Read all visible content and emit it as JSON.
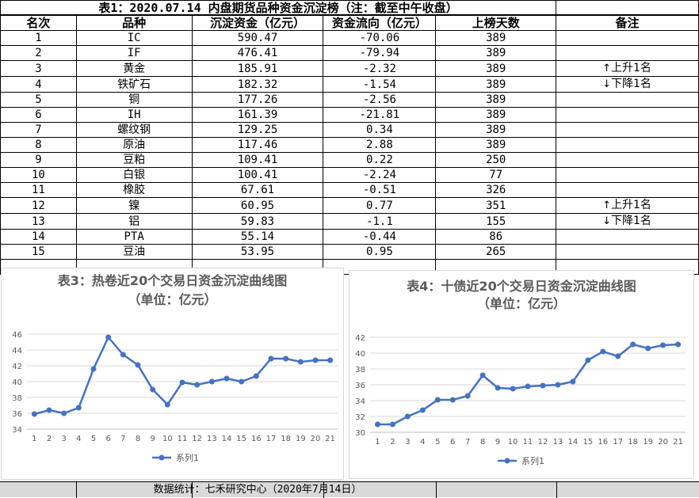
{
  "table": {
    "title": "表1：2020.07.14 内盘期货品种资金沉淀榜（注：截至中午收盘）",
    "headers": [
      "名次",
      "品种",
      "沉淀资金（亿元）",
      "资金流向（亿元）",
      "上榜天数",
      "备注"
    ],
    "rows": [
      {
        "rank": "1",
        "name": "IC",
        "fund": "590.47",
        "flow": "-70.06",
        "days": "389",
        "note": ""
      },
      {
        "rank": "2",
        "name": "IF",
        "fund": "476.41",
        "flow": "-79.94",
        "days": "389",
        "note": ""
      },
      {
        "rank": "3",
        "name": "黄金",
        "fund": "185.91",
        "flow": "-2.32",
        "days": "389",
        "note": "上升1名",
        "dir": "up"
      },
      {
        "rank": "4",
        "name": "铁矿石",
        "fund": "182.32",
        "flow": "-1.54",
        "days": "389",
        "note": "下降1名",
        "dir": "down"
      },
      {
        "rank": "5",
        "name": "铜",
        "fund": "177.26",
        "flow": "-2.56",
        "days": "389",
        "note": ""
      },
      {
        "rank": "6",
        "name": "IH",
        "fund": "161.39",
        "flow": "-21.81",
        "days": "389",
        "note": ""
      },
      {
        "rank": "7",
        "name": "螺纹钢",
        "fund": "129.25",
        "flow": "0.34",
        "days": "389",
        "note": ""
      },
      {
        "rank": "8",
        "name": "原油",
        "fund": "117.46",
        "flow": "2.88",
        "days": "389",
        "note": ""
      },
      {
        "rank": "9",
        "name": "豆粕",
        "fund": "109.41",
        "flow": "0.22",
        "days": "250",
        "note": ""
      },
      {
        "rank": "10",
        "name": "白银",
        "fund": "100.41",
        "flow": "-2.24",
        "days": "77",
        "note": ""
      },
      {
        "rank": "11",
        "name": "橡胶",
        "fund": "67.61",
        "flow": "-0.51",
        "days": "326",
        "note": ""
      },
      {
        "rank": "12",
        "name": "镍",
        "fund": "60.95",
        "flow": "0.77",
        "days": "351",
        "note": "上升1名",
        "dir": "up"
      },
      {
        "rank": "13",
        "name": "铝",
        "fund": "59.83",
        "flow": "-1.1",
        "days": "155",
        "note": "下降1名",
        "dir": "down"
      },
      {
        "rank": "14",
        "name": "PTA",
        "fund": "55.14",
        "flow": "-0.44",
        "days": "86",
        "note": ""
      },
      {
        "rank": "15",
        "name": "豆油",
        "fund": "53.95",
        "flow": "0.95",
        "days": "265",
        "note": ""
      },
      {
        "rank": "",
        "name": "",
        "fund": "",
        "flow": "",
        "days": "",
        "note": ""
      }
    ]
  },
  "chart_data": [
    {
      "type": "line",
      "title": "表3：热卷近20个交易日资金沉淀曲线图",
      "subtitle": "（单位：亿元）",
      "x": [
        1,
        2,
        3,
        4,
        5,
        6,
        7,
        8,
        9,
        10,
        11,
        12,
        13,
        14,
        15,
        16,
        17,
        18,
        19,
        20,
        21
      ],
      "series": [
        {
          "name": "系列1",
          "values": [
            35.9,
            36.4,
            36.0,
            36.7,
            41.6,
            45.6,
            43.4,
            42.1,
            39.0,
            37.1,
            39.9,
            39.6,
            40.0,
            40.4,
            40.0,
            40.7,
            42.9,
            42.9,
            42.5,
            42.7,
            42.7
          ]
        }
      ],
      "ylim": [
        34,
        46
      ],
      "yticks": [
        34,
        36,
        38,
        40,
        42,
        44,
        46
      ],
      "grid": true,
      "legend": "bottom",
      "color": "#4472c4"
    },
    {
      "type": "line",
      "title": "表4：十债近20个交易日资金沉淀曲线图",
      "subtitle": "（单位：亿元）",
      "x": [
        1,
        2,
        3,
        4,
        5,
        6,
        7,
        8,
        9,
        10,
        11,
        12,
        13,
        14,
        15,
        16,
        17,
        18,
        19,
        20,
        21
      ],
      "series": [
        {
          "name": "系列1",
          "values": [
            31.0,
            31.0,
            32.0,
            32.8,
            34.1,
            34.1,
            34.6,
            37.2,
            35.6,
            35.5,
            35.8,
            35.9,
            36.0,
            36.4,
            39.1,
            40.2,
            39.6,
            41.1,
            40.6,
            41.0,
            41.1
          ]
        }
      ],
      "ylim": [
        30,
        42
      ],
      "yticks": [
        30,
        32,
        34,
        36,
        38,
        40,
        42
      ],
      "grid": true,
      "legend": "bottom",
      "color": "#4472c4"
    }
  ],
  "footer": {
    "text": "数据统计：七禾研究中心（2020年7月14日）"
  }
}
